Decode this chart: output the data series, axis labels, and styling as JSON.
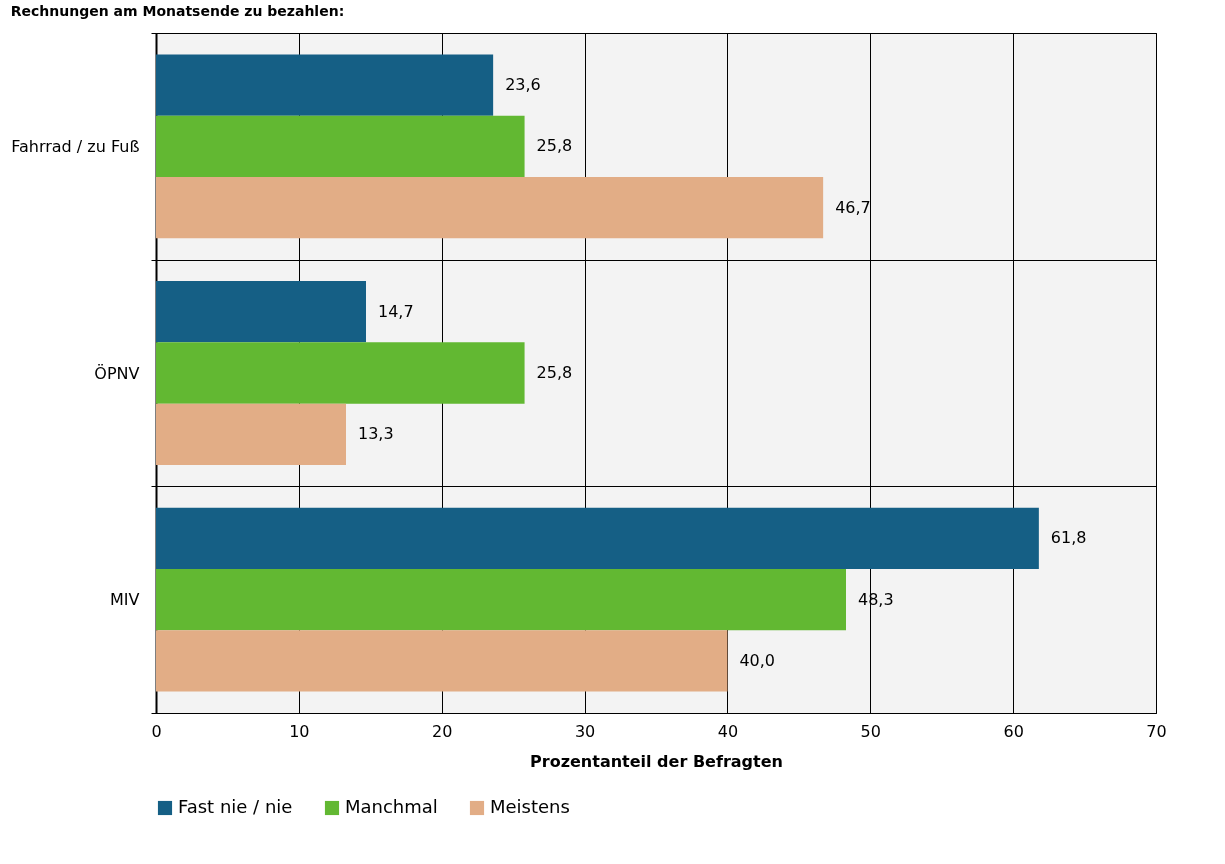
{
  "chart_data": {
    "type": "bar",
    "orientation": "horizontal",
    "title": "Rechnungen am Monatsende zu bezahlen:",
    "xlabel": "Prozentanteil der Befragten",
    "categories": [
      "Fahrrad / zu Fuß",
      "ÖPNV",
      "MIV"
    ],
    "series": [
      {
        "name": "Fast nie / nie",
        "color": "#155f85",
        "values": [
          23.6,
          14.7,
          61.8
        ],
        "value_labels": [
          "23,6",
          "14,7",
          "61,8"
        ]
      },
      {
        "name": "Manchmal",
        "color": "#62b832",
        "values": [
          25.8,
          25.8,
          48.3
        ],
        "value_labels": [
          "25,8",
          "25,8",
          "48,3"
        ]
      },
      {
        "name": "Meistens",
        "color": "#e2ad86",
        "values": [
          46.7,
          13.3,
          40.0
        ],
        "value_labels": [
          "46,7",
          "13,3",
          "40,0"
        ]
      }
    ],
    "xlim": [
      0,
      70
    ],
    "xticks": [
      0,
      10,
      20,
      30,
      40,
      50,
      60,
      70
    ],
    "grid": true,
    "legend": "bottom"
  }
}
